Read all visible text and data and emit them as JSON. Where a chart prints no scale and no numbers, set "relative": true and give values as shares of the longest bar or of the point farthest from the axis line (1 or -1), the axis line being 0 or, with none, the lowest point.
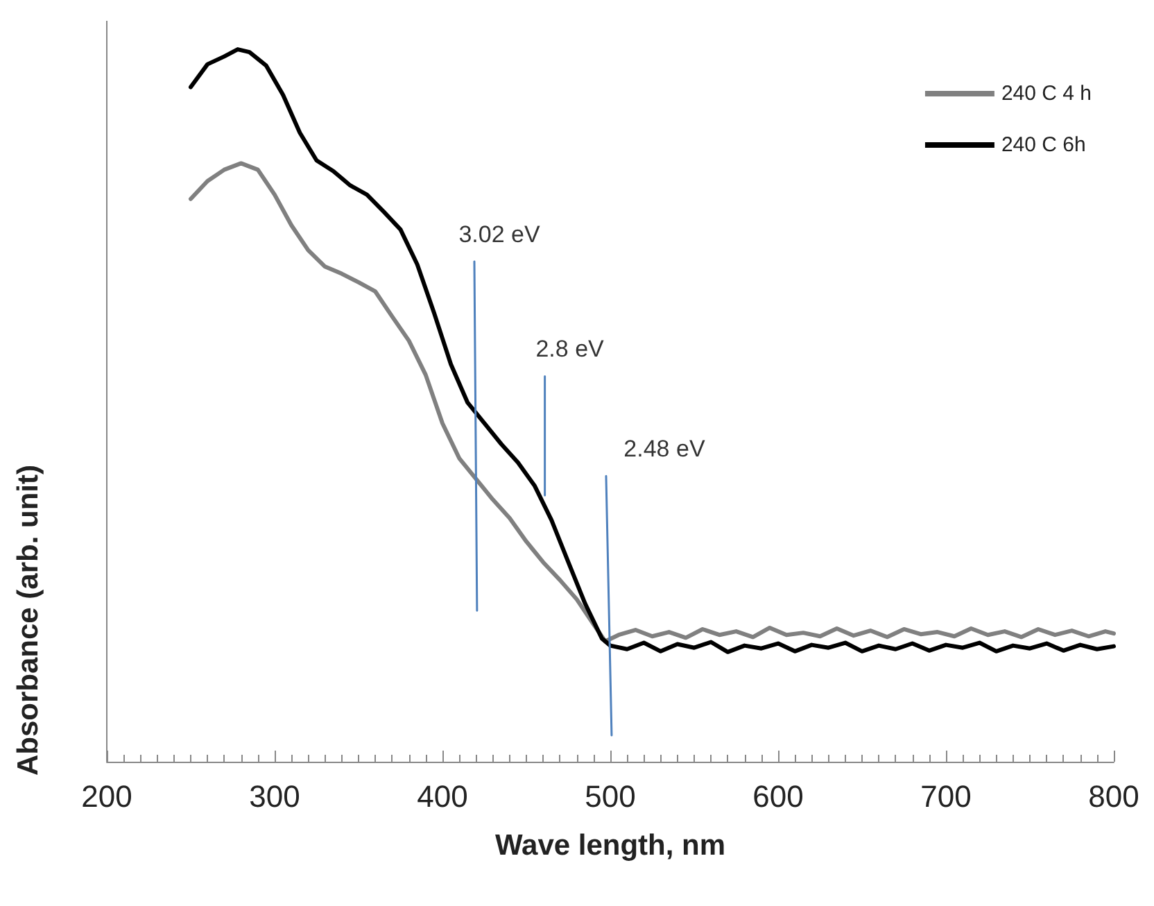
{
  "chart_data": {
    "type": "line",
    "relative": true,
    "xlabel": "Wave length, nm",
    "ylabel": "Absorbance (arb. unit)",
    "xlim": [
      200,
      800
    ],
    "xticks": [
      200,
      300,
      400,
      500,
      600,
      700,
      800
    ],
    "grid": false,
    "legend": "top right",
    "marker": "none",
    "line_style": "solid",
    "series": [
      {
        "name": "240 C 4 h",
        "color": "#808080",
        "x": [
          250,
          260,
          270,
          280,
          290,
          300,
          310,
          320,
          330,
          340,
          350,
          360,
          370,
          380,
          390,
          400,
          410,
          420,
          430,
          440,
          450,
          460,
          470,
          480,
          490,
          497,
          505,
          515,
          525,
          535,
          545,
          555,
          565,
          575,
          585,
          595,
          605,
          615,
          625,
          635,
          645,
          655,
          665,
          675,
          685,
          695,
          705,
          715,
          725,
          735,
          745,
          755,
          765,
          775,
          785,
          795,
          800
        ],
        "values": [
          0.79,
          0.815,
          0.831,
          0.84,
          0.831,
          0.796,
          0.753,
          0.718,
          0.695,
          0.685,
          0.673,
          0.66,
          0.625,
          0.591,
          0.543,
          0.475,
          0.426,
          0.397,
          0.368,
          0.342,
          0.309,
          0.28,
          0.255,
          0.228,
          0.193,
          0.169,
          0.178,
          0.185,
          0.176,
          0.182,
          0.174,
          0.186,
          0.178,
          0.183,
          0.175,
          0.188,
          0.178,
          0.181,
          0.176,
          0.187,
          0.177,
          0.184,
          0.175,
          0.186,
          0.179,
          0.182,
          0.176,
          0.187,
          0.178,
          0.183,
          0.175,
          0.186,
          0.178,
          0.184,
          0.176,
          0.183,
          0.18
        ]
      },
      {
        "name": "240 C 6h",
        "color": "#000000",
        "x": [
          250,
          260,
          270,
          278,
          285,
          295,
          305,
          315,
          325,
          335,
          345,
          355,
          365,
          375,
          385,
          395,
          405,
          415,
          425,
          435,
          445,
          455,
          465,
          475,
          485,
          495,
          500,
          510,
          520,
          530,
          540,
          550,
          560,
          570,
          580,
          590,
          600,
          610,
          620,
          630,
          640,
          650,
          660,
          670,
          680,
          690,
          700,
          710,
          720,
          730,
          740,
          750,
          760,
          770,
          780,
          790,
          800
        ],
        "values": [
          0.947,
          0.979,
          0.99,
          1,
          0.996,
          0.977,
          0.936,
          0.883,
          0.844,
          0.829,
          0.809,
          0.796,
          0.772,
          0.747,
          0.698,
          0.63,
          0.558,
          0.504,
          0.475,
          0.446,
          0.42,
          0.387,
          0.339,
          0.28,
          0.222,
          0.173,
          0.163,
          0.158,
          0.167,
          0.155,
          0.165,
          0.16,
          0.168,
          0.154,
          0.163,
          0.159,
          0.166,
          0.155,
          0.164,
          0.16,
          0.167,
          0.155,
          0.163,
          0.158,
          0.166,
          0.156,
          0.164,
          0.16,
          0.167,
          0.155,
          0.163,
          0.159,
          0.166,
          0.156,
          0.164,
          0.158,
          0.162
        ]
      },
      {
        "color": "#4f81bd",
        "x": [
          419,
          420.6
        ],
        "values": [
          0.702,
          0.212
        ]
      },
      {
        "color": "#4f81bd",
        "x": [
          461,
          461
        ],
        "values": [
          0.541,
          0.374
        ]
      },
      {
        "color": "#4f81bd",
        "x": [
          497.5,
          500.8
        ],
        "values": [
          0.401,
          0.037
        ]
      }
    ],
    "annotations": [
      "3.02 eV",
      "2.8 eV",
      "2.48 eV"
    ]
  }
}
